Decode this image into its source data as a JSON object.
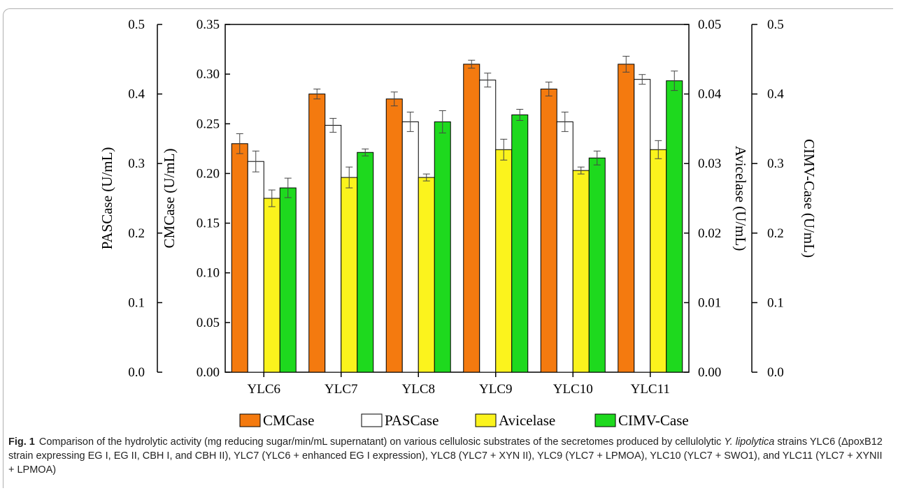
{
  "chart_data": {
    "type": "bar",
    "categories": [
      "YLC6",
      "YLC7",
      "YLC8",
      "YLC9",
      "YLC10",
      "YLC11"
    ],
    "series": [
      {
        "name": "CMCase",
        "axis": "CMCase (U/mL)",
        "color": "#f47a0f",
        "values": [
          0.23,
          0.28,
          0.275,
          0.31,
          0.285,
          0.31
        ],
        "errors": [
          0.01,
          0.005,
          0.007,
          0.004,
          0.007,
          0.008
        ]
      },
      {
        "name": "PASCase",
        "axis": "PASCase (U/mL)",
        "color": "#ffffff",
        "values": [
          0.303,
          0.355,
          0.36,
          0.42,
          0.36,
          0.421
        ],
        "errors": [
          0.015,
          0.01,
          0.014,
          0.01,
          0.014,
          0.007
        ]
      },
      {
        "name": "Avicelase",
        "axis": "Avicelase (U/mL)",
        "color": "#fbf31d",
        "values": [
          0.025,
          0.028,
          0.028,
          0.032,
          0.029,
          0.032
        ],
        "errors": [
          0.0012,
          0.0015,
          0.0005,
          0.0015,
          0.0005,
          0.0013
        ]
      },
      {
        "name": "CIMV-Case",
        "axis": "CIMV-Case (U/mL)",
        "color": "#1ed91e",
        "values": [
          0.265,
          0.316,
          0.36,
          0.37,
          0.308,
          0.419
        ],
        "errors": [
          0.014,
          0.005,
          0.016,
          0.008,
          0.01,
          0.014
        ]
      }
    ],
    "axes": {
      "cmcase": {
        "label": "CMCase (U/mL)",
        "ylim": [
          0,
          0.35
        ],
        "ticks": [
          "0.00",
          "0.05",
          "0.10",
          "0.15",
          "0.20",
          "0.25",
          "0.30",
          "0.35"
        ]
      },
      "pascase": {
        "label": "PASCase (U/mL)",
        "ylim": [
          0,
          0.5
        ],
        "ticks": [
          "0.0",
          "0.1",
          "0.2",
          "0.3",
          "0.4",
          "0.5"
        ]
      },
      "avicelase": {
        "label": "Avicelase (U/mL)",
        "ylim": [
          0,
          0.05
        ],
        "ticks": [
          "0.00",
          "0.01",
          "0.02",
          "0.03",
          "0.04",
          "0.05"
        ]
      },
      "cimv": {
        "label": "CIMV-Case (U/mL)",
        "ylim": [
          0,
          0.5
        ],
        "ticks": [
          "0.0",
          "0.1",
          "0.2",
          "0.3",
          "0.4",
          "0.5"
        ]
      }
    },
    "grid": false,
    "legend_position": "bottom"
  },
  "caption": {
    "label": "Fig. 1",
    "text_before_italic": "Comparison of the hydrolytic activity (mg reducing sugar/min/mL supernatant) on various cellulosic substrates of the secretomes produced by cellulolytic ",
    "italic": "Y. lipolytica",
    "text_after_italic": " strains YLC6 (ΔpoxB12 strain expressing EG I, EG II, CBH I, and CBH II), YLC7 (YLC6 + enhanced EG I expression), YLC8 (YLC7 + XYN II), YLC9 (YLC7 + LPMOA), YLC10 (YLC7 + SWO1), and YLC11 (YLC7 + XYNII + LPMOA)"
  }
}
